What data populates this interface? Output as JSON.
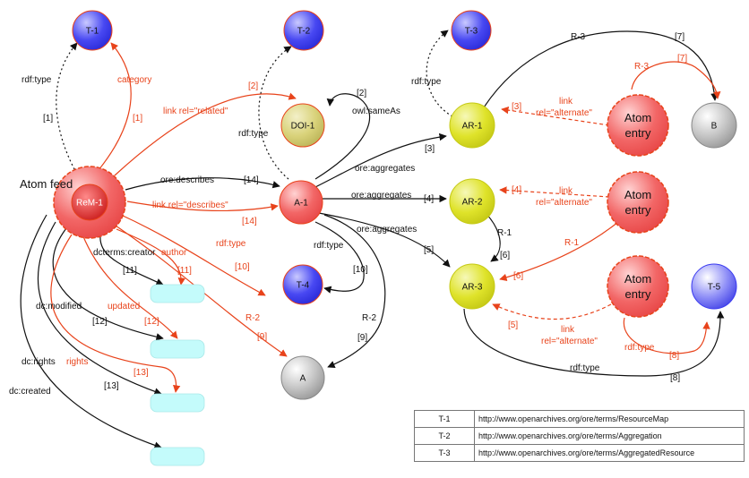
{
  "nodes": {
    "t1": "T-1",
    "t2": "T-2",
    "t3": "T-3",
    "t4": "T-4",
    "t5": "T-5",
    "doi1": "DOI-1",
    "a1": "A-1",
    "a": "A",
    "b": "B",
    "rem1": "ReM-1",
    "ar1": "AR-1",
    "ar2": "AR-2",
    "ar3": "AR-3",
    "atom_feed": "Atom feed",
    "atom_entry_line1": "Atom",
    "atom_entry_line2": "entry"
  },
  "edge_labels": {
    "rdf_type": "rdf:type",
    "category": "category",
    "link_related": "link rel=\"related\"",
    "owl_sameas": "owl:sameAs",
    "ore_describes": "ore:describes",
    "link_describes": "link rel=\"describes\"",
    "ore_aggregates": "ore:aggregates",
    "dcterms_creator": "dcterms:creator",
    "author": "author",
    "dc_modified": "dc:modified",
    "updated": "updated",
    "dc_rights": "dc:rights",
    "rights": "rights",
    "dc_created": "dc:created",
    "r1": "R-1",
    "r2": "R-2",
    "r3": "R-3",
    "link_line1": "link",
    "link_line2": "rel=\"alternate\""
  },
  "refs": {
    "n1": "[1]",
    "n2": "[2]",
    "n3": "[3]",
    "n4": "[4]",
    "n5": "[5]",
    "n6": "[6]",
    "n7": "[7]",
    "n8": "[8]",
    "n9": "[9]",
    "n10": "[10]",
    "n11": "[11]",
    "n12": "[12]",
    "n13": "[13]",
    "n14": "[14]"
  },
  "legend": [
    {
      "key": "T-1",
      "value": "http://www.openarchives.org/ore/terms/ResourceMap"
    },
    {
      "key": "T-2",
      "value": "http://www.openarchives.org/ore/terms/Aggregation"
    },
    {
      "key": "T-3",
      "value": "http://www.openarchives.org/ore/terms/AggregatedResource"
    }
  ],
  "colors": {
    "red_edge": "#e8431b",
    "black_edge": "#111111",
    "blue_node": "#3b3bf0",
    "red_node": "#f05a5a",
    "yellow_node": "#d8dc1e",
    "gray_node": "#b0b0b0",
    "literal_box": "#c4fbfb"
  }
}
